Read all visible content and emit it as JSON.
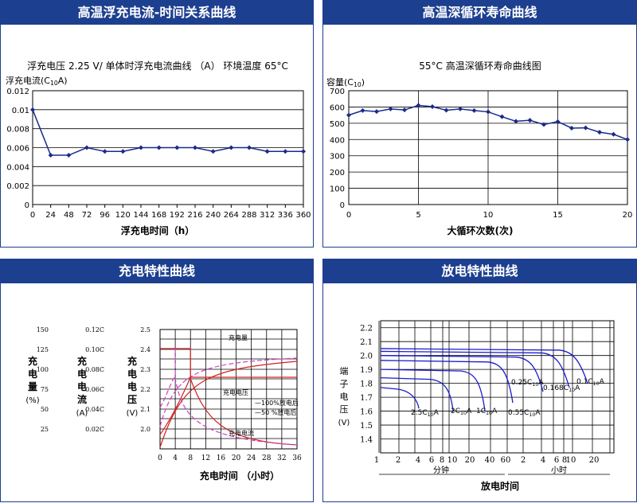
{
  "panels": {
    "p1_title": "高温浮充电流-时间关系曲线",
    "p2_title": "高温深循环寿命曲线",
    "p3_title": "充电特性曲线",
    "p4_title": "放电特性曲线"
  },
  "chart_data": [
    {
      "type": "line",
      "title": "浮充电压 2.25 V/ 单体时浮充电流曲线 （A） 环境温度 65°C",
      "ylabel": "浮充电流(C10A)",
      "xlabel": "浮充电时间（h）",
      "x": [
        0,
        24,
        48,
        72,
        96,
        120,
        144,
        168,
        192,
        216,
        240,
        264,
        288,
        312,
        336,
        360
      ],
      "y": [
        0.01,
        0.0052,
        0.0052,
        0.006,
        0.0056,
        0.0056,
        0.006,
        0.006,
        0.006,
        0.006,
        0.0056,
        0.006,
        0.006,
        0.0056,
        0.0056,
        0.0056
      ],
      "xlim": [
        0,
        360
      ],
      "ylim": [
        0,
        0.012
      ],
      "xticks": [
        "0",
        "24",
        "48",
        "72",
        "96",
        "120",
        "144",
        "168",
        "192",
        "216",
        "240",
        "264",
        "288",
        "312",
        "336",
        "360"
      ],
      "yticks": [
        "0",
        "0.002",
        "0.004",
        "0.006",
        "0.008",
        "0.01",
        "0.012"
      ],
      "grid": true
    },
    {
      "type": "line",
      "title": "55°C 高温深循环寿命曲线图",
      "ylabel": "容量(C10)",
      "xlabel": "大循环次数(次)",
      "x": [
        0,
        1,
        2,
        3,
        4,
        5,
        6,
        7,
        8,
        9,
        10,
        11,
        12,
        13,
        14,
        15,
        16,
        17,
        18,
        19,
        20
      ],
      "y": [
        550,
        578,
        572,
        588,
        582,
        610,
        602,
        580,
        588,
        578,
        570,
        540,
        512,
        518,
        492,
        510,
        470,
        472,
        445,
        432,
        400
      ],
      "xlim": [
        0,
        20
      ],
      "ylim": [
        0,
        700
      ],
      "xticks": [
        "0",
        "5",
        "10",
        "15",
        "20"
      ],
      "yticks": [
        "0",
        "100",
        "200",
        "300",
        "400",
        "500",
        "600",
        "700"
      ],
      "grid": true
    },
    {
      "type": "line",
      "xlabel": "充电时间 （小时）",
      "x_ticks": [
        "0",
        "4",
        "8",
        "12",
        "16",
        "20",
        "24",
        "28",
        "32",
        "36"
      ],
      "axis_capacity": {
        "label": "充电量",
        "unit": "(%)",
        "ticks": [
          "150",
          "125",
          "100",
          "75",
          "50",
          "25"
        ]
      },
      "axis_current": {
        "label": "充电电流",
        "unit": "(A)",
        "ticks": [
          "0.12C",
          "0.10C",
          "0.08C",
          "0.06C",
          "0.04C",
          "0.02C"
        ]
      },
      "axis_voltage": {
        "label": "充电电压",
        "unit": "(V)",
        "ticks": [
          "2.5",
          "2.4",
          "2.3",
          "2.2",
          "2.1",
          "2.0"
        ]
      },
      "annotations": {
        "capacity": "充电量",
        "voltage": "充电电压",
        "current": "充电电流",
        "full": "—100%放电后",
        "half": "—50 %放电后"
      },
      "colors": {
        "full": "#d42020",
        "half": "#d040c0"
      }
    },
    {
      "type": "line",
      "xlabel": "放电时间",
      "x_ticks": [
        "1",
        "2",
        "4",
        "6",
        "8",
        "10",
        "20",
        "40",
        "60",
        "2",
        "4",
        "6",
        "8",
        "10",
        "20"
      ],
      "x_unit_min": "分钟",
      "x_unit_hour": "小时",
      "ylabel": "端子电压",
      "yunit": "(V)",
      "yticks": [
        "2.2",
        "2.1",
        "2.0",
        "1.9",
        "1.8",
        "1.7",
        "1.6",
        "1.5",
        "1.4"
      ],
      "series": [
        {
          "name": "2.5C10A"
        },
        {
          "name": "2C10A"
        },
        {
          "name": "1C10A"
        },
        {
          "name": "0.55C10A"
        },
        {
          "name": "0.25C10A"
        },
        {
          "name": "0.168C10A"
        },
        {
          "name": "0.1C10A"
        }
      ],
      "color": "#1a1ad0"
    }
  ]
}
